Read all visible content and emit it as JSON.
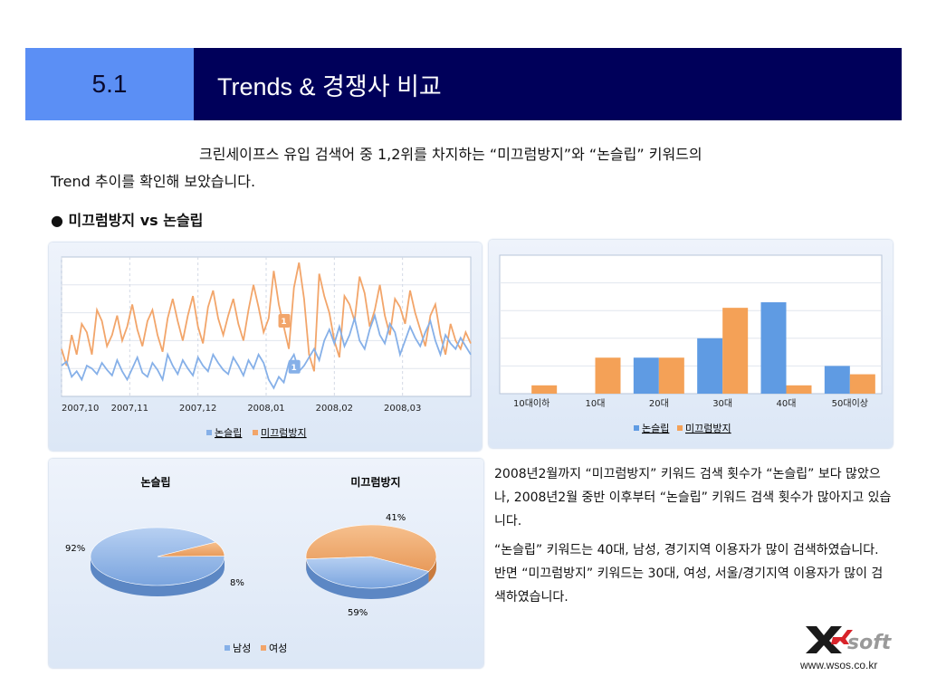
{
  "header": {
    "number": "5.1",
    "title": "Trends & 경쟁사 비교"
  },
  "intro": {
    "line1": "크린세이프스 유입 검색어 중 1,2위를 차지하는 “미끄럼방지”와 “논슬립” 키워드의",
    "line2": "Trend 추이를  확인해 보았습니다."
  },
  "bullet": {
    "symbol": "●",
    "text": "미끄럼방지 vs 논슬립"
  },
  "description": {
    "p1": "2008년2월까지 “미끄럼방지” 키워드 검색 횟수가 “논슬립” 보다 많았으나, 2008년2월 중반 이후부터 “논슬립” 키워드 검색 횟수가 많아지고 있습니다.",
    "p2": "“논슬립” 키워드는 40대, 남성, 경기지역 이용자가 많이 검색하였습니다. 반면 “미끄럼방지” 키워드는 30대, 여성, 서울/경기지역 이용자가 많이 검색하였습니다."
  },
  "logo": {
    "text": "soft"
  },
  "url": "www.wsos.co.kr",
  "colors": {
    "blue": "#86b0e8",
    "orange": "#f2a56a",
    "bar_blue": "#5f9be3",
    "bar_orange": "#f4a157",
    "header_dark": "#00005a",
    "header_light": "#5b8ff5"
  },
  "chart_data": [
    {
      "type": "line",
      "x_tick_labels": [
        "2007,10",
        "2007,11",
        "2007,12",
        "2008,01",
        "2008,02",
        "2008,03"
      ],
      "ylim": [
        0,
        100
      ],
      "grid": true,
      "legend_placement": "bottom",
      "annotations": [
        {
          "label": "1",
          "series": "미끄럼방지"
        },
        {
          "label": "1",
          "series": "논슬립"
        }
      ],
      "series": [
        {
          "name": "논슬립",
          "color": "#86b0e8",
          "values": [
            22,
            25,
            14,
            18,
            12,
            22,
            20,
            16,
            24,
            19,
            15,
            26,
            18,
            12,
            20,
            28,
            17,
            14,
            24,
            19,
            12,
            30,
            22,
            16,
            26,
            20,
            15,
            28,
            22,
            18,
            30,
            24,
            19,
            16,
            28,
            22,
            15,
            26,
            20,
            30,
            24,
            12,
            6,
            14,
            10,
            24,
            30,
            18,
            22,
            28,
            34,
            26,
            40,
            48,
            38,
            50,
            36,
            44,
            56,
            40,
            34,
            48,
            58,
            44,
            38,
            52,
            46,
            30,
            40,
            50,
            42,
            36,
            46,
            54,
            40,
            30,
            44,
            38,
            34,
            42,
            36,
            30
          ]
        },
        {
          "name": "미끄럼방지",
          "color": "#f2a56a",
          "values": [
            34,
            22,
            44,
            30,
            52,
            46,
            30,
            62,
            54,
            36,
            44,
            58,
            40,
            50,
            66,
            48,
            36,
            54,
            62,
            44,
            32,
            56,
            70,
            54,
            40,
            58,
            72,
            50,
            38,
            64,
            76,
            56,
            44,
            58,
            70,
            52,
            40,
            62,
            80,
            64,
            46,
            56,
            90,
            66,
            50,
            34,
            78,
            96,
            70,
            30,
            18,
            88,
            72,
            60,
            40,
            28,
            72,
            66,
            54,
            86,
            74,
            50,
            62,
            80,
            58,
            44,
            70,
            64,
            52,
            76,
            60,
            48,
            36,
            58,
            66,
            44,
            30,
            52,
            40,
            34,
            46,
            38
          ]
        }
      ]
    },
    {
      "type": "bar",
      "categories": [
        "10대이하",
        "10대",
        "20대",
        "30대",
        "40대",
        "50대이상"
      ],
      "ylim": [
        0,
        50
      ],
      "grid": true,
      "legend_placement": "bottom",
      "series": [
        {
          "name": "논슬립",
          "color": "#5f9be3",
          "values": [
            0,
            0,
            13,
            20,
            33,
            10
          ]
        },
        {
          "name": "미끄럼방지",
          "color": "#f4a157",
          "values": [
            3,
            13,
            13,
            31,
            3,
            7
          ]
        }
      ]
    },
    {
      "type": "pie",
      "title": "논슬립",
      "labels": [
        "남성",
        "여성"
      ],
      "values": [
        92,
        8
      ],
      "value_labels": [
        "92%",
        "8%"
      ],
      "colors": [
        "#86b0e8",
        "#f2a56a"
      ]
    },
    {
      "type": "pie",
      "title": "미끄럼방지",
      "labels": [
        "남성",
        "여성"
      ],
      "values": [
        41,
        59
      ],
      "value_labels": [
        "41%",
        "59%"
      ],
      "colors": [
        "#86b0e8",
        "#f2a56a"
      ]
    }
  ],
  "pie_legend": [
    "남성",
    "여성"
  ]
}
